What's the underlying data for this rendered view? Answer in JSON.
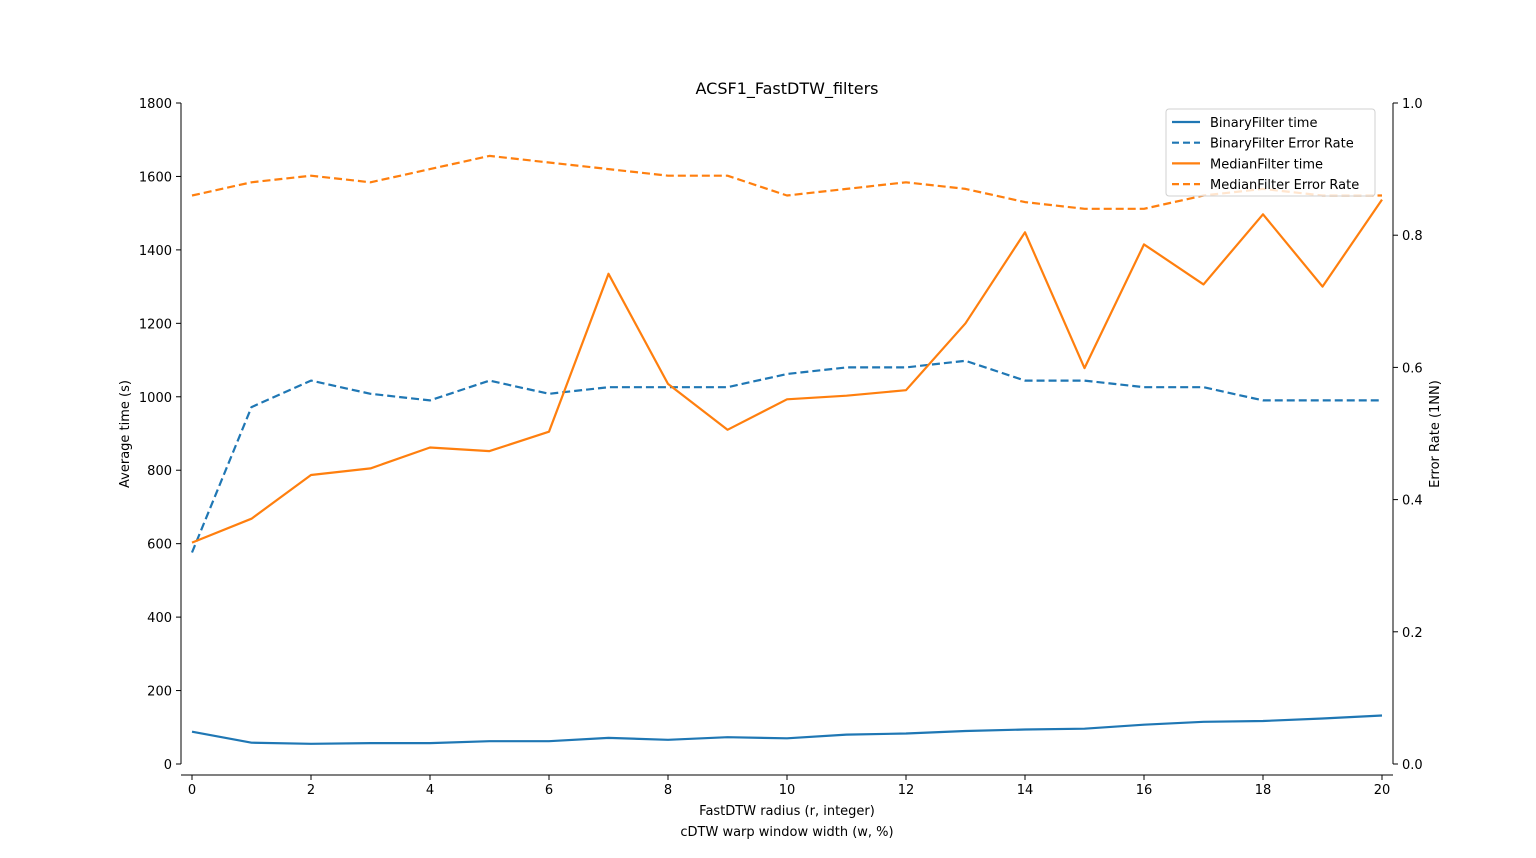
{
  "chart_data": {
    "type": "line",
    "title": "ACSF1_FastDTW_filters",
    "xlabel": "FastDTW radius (r, integer)",
    "xlabel2": "cDTW warp window width (w, %)",
    "ylabel_left": "Average time (s)",
    "ylabel_right": "Error Rate (1NN)",
    "xlim": [
      0,
      20
    ],
    "ylim_left": [
      0,
      1800
    ],
    "ylim_right": [
      0.0,
      1.0
    ],
    "x_ticks": [
      "0",
      "2",
      "4",
      "6",
      "8",
      "10",
      "12",
      "14",
      "16",
      "18",
      "20"
    ],
    "y_left_ticks": [
      "0",
      "200",
      "400",
      "600",
      "800",
      "1000",
      "1200",
      "1400",
      "1600",
      "1800"
    ],
    "y_right_ticks": [
      "0.0",
      "0.2",
      "0.4",
      "0.6",
      "0.8",
      "1.0"
    ],
    "grid": false,
    "legend_position": "top-right",
    "x": [
      0,
      1,
      2,
      3,
      4,
      5,
      6,
      7,
      8,
      9,
      10,
      11,
      12,
      13,
      14,
      15,
      16,
      17,
      18,
      19,
      20
    ],
    "series": [
      {
        "name": "BinaryFilter time",
        "axis": "left",
        "style": "solid",
        "color": "#1f77b4",
        "values": [
          88,
          58,
          55,
          57,
          57,
          62,
          62,
          71,
          66,
          73,
          70,
          80,
          83,
          90,
          94,
          96,
          107,
          115,
          117,
          124,
          132
        ]
      },
      {
        "name": "BinaryFilter Error Rate",
        "axis": "right",
        "style": "dashed",
        "color": "#1f77b4",
        "values": [
          0.32,
          0.54,
          0.58,
          0.56,
          0.55,
          0.58,
          0.56,
          0.57,
          0.57,
          0.57,
          0.59,
          0.6,
          0.6,
          0.61,
          0.58,
          0.58,
          0.57,
          0.57,
          0.55,
          0.55,
          0.55
        ]
      },
      {
        "name": "MedianFilter time",
        "axis": "left",
        "style": "solid",
        "color": "#ff7f0e",
        "values": [
          603,
          668,
          787,
          805,
          862,
          852,
          905,
          1335,
          1035,
          910,
          993,
          1003,
          1018,
          1200,
          1448,
          1078,
          1415,
          1306,
          1497,
          1300,
          1537
        ]
      },
      {
        "name": "MedianFilter Error Rate",
        "axis": "right",
        "style": "dashed",
        "color": "#ff7f0e",
        "values": [
          0.86,
          0.88,
          0.89,
          0.88,
          0.9,
          0.92,
          0.91,
          0.9,
          0.89,
          0.89,
          0.86,
          0.87,
          0.88,
          0.87,
          0.85,
          0.84,
          0.84,
          0.86,
          0.87,
          0.86,
          0.86
        ]
      }
    ]
  }
}
